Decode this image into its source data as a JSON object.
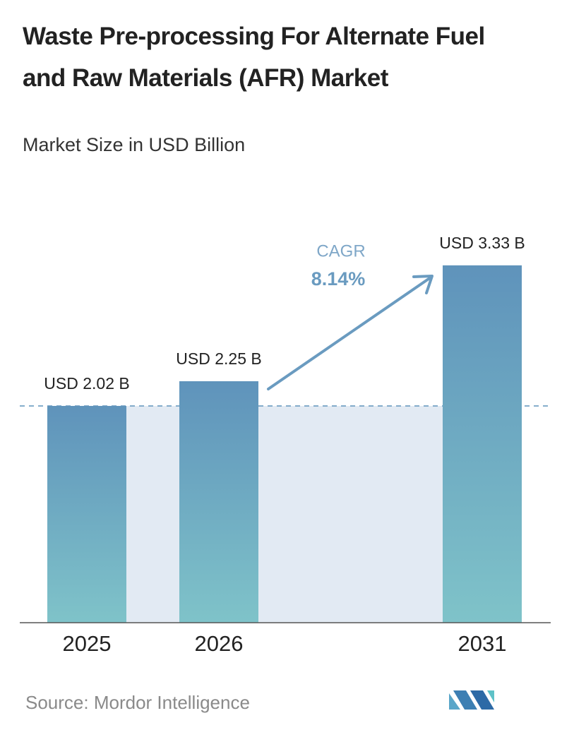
{
  "chart_data": {
    "type": "bar",
    "title": "Waste Pre-processing For Alternate Fuel and Raw Materials (AFR) Market",
    "subtitle": "Market Size in USD Billion",
    "categories": [
      "2025",
      "2026",
      "2031"
    ],
    "values": [
      2.02,
      2.25,
      3.33
    ],
    "value_labels": [
      "USD 2.02 B",
      "USD 2.25 B",
      "USD 3.33 B"
    ],
    "ylim": [
      0,
      3.5
    ],
    "color": "#5f93bb",
    "annotations": {
      "cagr_label": "CAGR",
      "cagr_value": "8.14%"
    },
    "source": "Source: Mordor Intelligence"
  }
}
